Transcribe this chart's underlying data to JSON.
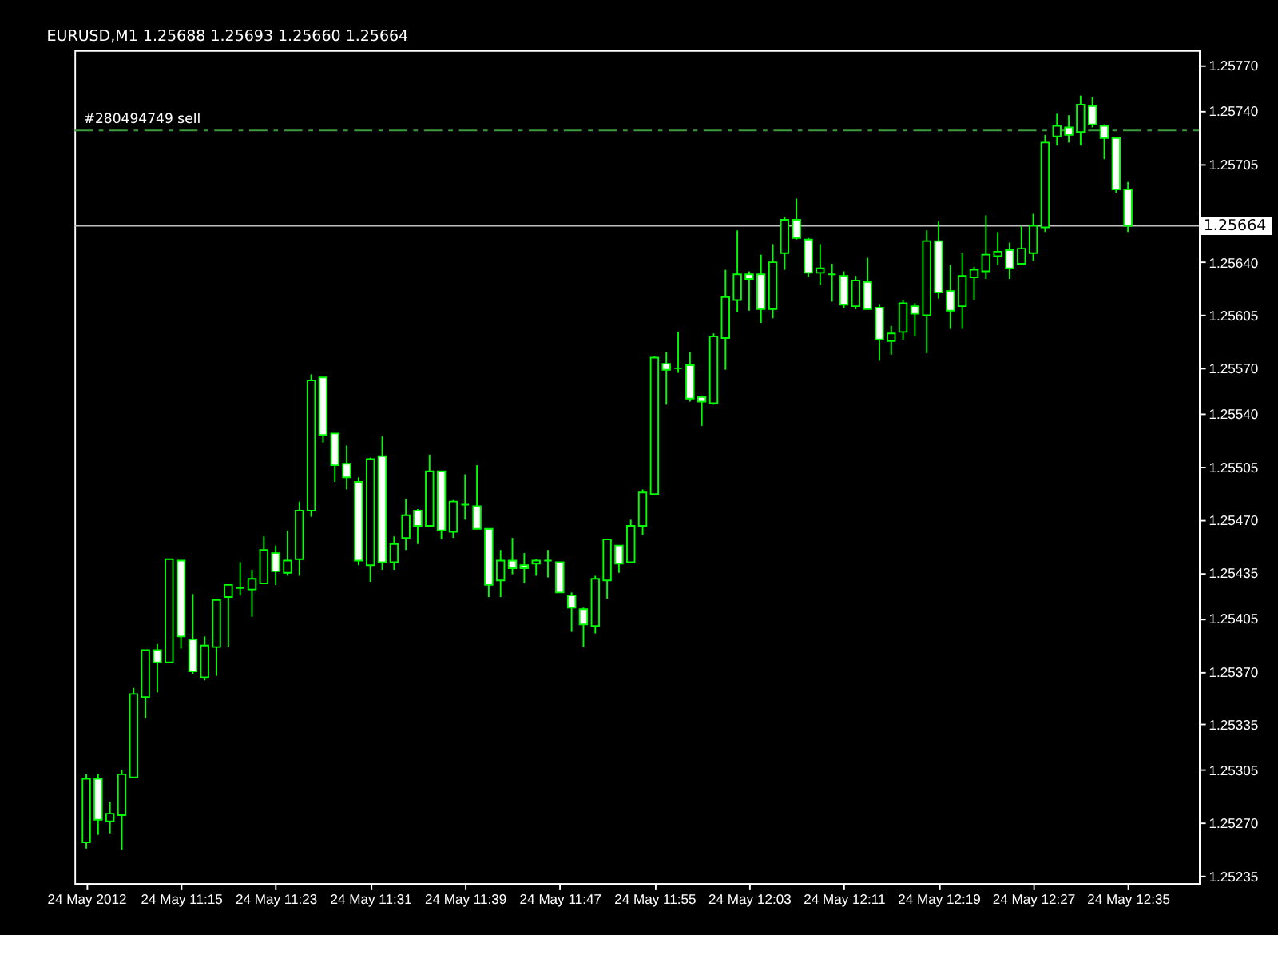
{
  "chart_data": {
    "type": "candlestick",
    "title": "EURUSD,M1  1.25688 1.25693 1.25660 1.25664",
    "color": "#00ff00",
    "x": [
      "2012-05-24T11:07",
      "2012-05-24T11:08",
      "2012-05-24T11:09",
      "2012-05-24T11:10",
      "2012-05-24T11:11",
      "2012-05-24T11:12",
      "2012-05-24T11:13",
      "2012-05-24T11:14",
      "2012-05-24T11:15",
      "2012-05-24T11:16",
      "2012-05-24T11:17",
      "2012-05-24T11:18",
      "2012-05-24T11:19",
      "2012-05-24T11:20",
      "2012-05-24T11:21",
      "2012-05-24T11:22",
      "2012-05-24T11:23",
      "2012-05-24T11:24",
      "2012-05-24T11:25",
      "2012-05-24T11:26",
      "2012-05-24T11:27",
      "2012-05-24T11:28",
      "2012-05-24T11:29",
      "2012-05-24T11:30",
      "2012-05-24T11:31",
      "2012-05-24T11:32",
      "2012-05-24T11:33",
      "2012-05-24T11:34",
      "2012-05-24T11:35",
      "2012-05-24T11:36",
      "2012-05-24T11:37",
      "2012-05-24T11:38",
      "2012-05-24T11:39",
      "2012-05-24T11:40",
      "2012-05-24T11:41",
      "2012-05-24T11:42",
      "2012-05-24T11:43",
      "2012-05-24T11:44",
      "2012-05-24T11:45",
      "2012-05-24T11:46",
      "2012-05-24T11:47",
      "2012-05-24T11:48",
      "2012-05-24T11:49",
      "2012-05-24T11:50",
      "2012-05-24T11:51",
      "2012-05-24T11:52",
      "2012-05-24T11:53",
      "2012-05-24T11:54",
      "2012-05-24T11:55",
      "2012-05-24T11:56",
      "2012-05-24T11:57",
      "2012-05-24T11:58",
      "2012-05-24T11:59",
      "2012-05-24T12:00",
      "2012-05-24T12:01",
      "2012-05-24T12:02",
      "2012-05-24T12:03",
      "2012-05-24T12:04",
      "2012-05-24T12:05",
      "2012-05-24T12:06",
      "2012-05-24T12:07",
      "2012-05-24T12:08",
      "2012-05-24T12:09",
      "2012-05-24T12:10",
      "2012-05-24T12:11",
      "2012-05-24T12:12",
      "2012-05-24T12:13",
      "2012-05-24T12:14",
      "2012-05-24T12:15",
      "2012-05-24T12:16",
      "2012-05-24T12:17",
      "2012-05-24T12:18",
      "2012-05-24T12:19",
      "2012-05-24T12:20",
      "2012-05-24T12:21",
      "2012-05-24T12:22",
      "2012-05-24T12:23",
      "2012-05-24T12:24",
      "2012-05-24T12:25",
      "2012-05-24T12:26",
      "2012-05-24T12:27",
      "2012-05-24T12:28",
      "2012-05-24T12:29",
      "2012-05-24T12:30",
      "2012-05-24T12:31",
      "2012-05-24T12:32",
      "2012-05-24T12:33",
      "2012-05-24T12:34",
      "2012-05-24T12:35"
    ],
    "ohlc": [
      [
        1.25257,
        1.25302,
        1.25253,
        1.25299
      ],
      [
        1.25299,
        1.25302,
        1.25262,
        1.25272
      ],
      [
        1.25271,
        1.25284,
        1.25263,
        1.25276
      ],
      [
        1.25275,
        1.25305,
        1.25252,
        1.25302
      ],
      [
        1.253,
        1.25359,
        1.253,
        1.25355
      ],
      [
        1.25353,
        1.25384,
        1.25339,
        1.25384
      ],
      [
        1.25384,
        1.25388,
        1.25356,
        1.25376
      ],
      [
        1.25376,
        1.25444,
        1.25376,
        1.25444
      ],
      [
        1.25443,
        1.25443,
        1.25385,
        1.25393
      ],
      [
        1.25391,
        1.25421,
        1.25368,
        1.2537
      ],
      [
        1.25366,
        1.25393,
        1.25364,
        1.25387
      ],
      [
        1.25386,
        1.25417,
        1.25367,
        1.25417
      ],
      [
        1.25419,
        1.25427,
        1.25386,
        1.25427
      ],
      [
        1.25425,
        1.25442,
        1.2542,
        1.25425
      ],
      [
        1.25424,
        1.25437,
        1.25406,
        1.25431
      ],
      [
        1.25428,
        1.25459,
        1.25428,
        1.2545
      ],
      [
        1.25448,
        1.25453,
        1.25427,
        1.25436
      ],
      [
        1.25435,
        1.25463,
        1.25433,
        1.25443
      ],
      [
        1.25444,
        1.25482,
        1.25433,
        1.25476
      ],
      [
        1.25476,
        1.25566,
        1.25472,
        1.25562
      ],
      [
        1.25564,
        1.25564,
        1.25521,
        1.25526
      ],
      [
        1.25527,
        1.25527,
        1.25495,
        1.25506
      ],
      [
        1.25507,
        1.25519,
        1.2549,
        1.25498
      ],
      [
        1.25495,
        1.25498,
        1.2544,
        1.25443
      ],
      [
        1.2544,
        1.25511,
        1.25429,
        1.2551
      ],
      [
        1.25512,
        1.25525,
        1.25437,
        1.25442
      ],
      [
        1.25442,
        1.25459,
        1.25437,
        1.25454
      ],
      [
        1.25458,
        1.25484,
        1.2545,
        1.25473
      ],
      [
        1.25476,
        1.25477,
        1.25454,
        1.25466
      ],
      [
        1.25466,
        1.25513,
        1.25466,
        1.25502
      ],
      [
        1.25502,
        1.25502,
        1.25457,
        1.25463
      ],
      [
        1.25462,
        1.25483,
        1.25458,
        1.25482
      ],
      [
        1.2548,
        1.255,
        1.2547,
        1.2548
      ],
      [
        1.25479,
        1.25506,
        1.25464,
        1.25464
      ],
      [
        1.25464,
        1.25464,
        1.25419,
        1.25427
      ],
      [
        1.2543,
        1.2545,
        1.25419,
        1.25443
      ],
      [
        1.25443,
        1.25458,
        1.25434,
        1.25438
      ],
      [
        1.2544,
        1.25448,
        1.25428,
        1.25438
      ],
      [
        1.25441,
        1.25444,
        1.25433,
        1.25443
      ],
      [
        1.25443,
        1.2545,
        1.25432,
        1.25443
      ],
      [
        1.25442,
        1.25442,
        1.25422,
        1.25422
      ],
      [
        1.2542,
        1.25422,
        1.25396,
        1.25412
      ],
      [
        1.25411,
        1.25412,
        1.25386,
        1.25401
      ],
      [
        1.254,
        1.25433,
        1.25395,
        1.25431
      ],
      [
        1.2543,
        1.25457,
        1.25418,
        1.25457
      ],
      [
        1.25453,
        1.25453,
        1.25435,
        1.25441
      ],
      [
        1.25442,
        1.2547,
        1.25442,
        1.25466
      ],
      [
        1.25466,
        1.2549,
        1.2546,
        1.25488
      ],
      [
        1.25487,
        1.25578,
        1.25487,
        1.25577
      ],
      [
        1.25573,
        1.25581,
        1.25546,
        1.25569
      ],
      [
        1.2557,
        1.25594,
        1.25567,
        1.2557
      ],
      [
        1.25572,
        1.25581,
        1.25548,
        1.2555
      ],
      [
        1.25551,
        1.25552,
        1.25532,
        1.25548
      ],
      [
        1.25547,
        1.25593,
        1.25546,
        1.25591
      ],
      [
        1.2559,
        1.25635,
        1.25569,
        1.25617
      ],
      [
        1.25615,
        1.25661,
        1.25607,
        1.25632
      ],
      [
        1.25632,
        1.25634,
        1.25608,
        1.25629
      ],
      [
        1.25632,
        1.25645,
        1.256,
        1.25609
      ],
      [
        1.25609,
        1.25652,
        1.25603,
        1.2564
      ],
      [
        1.25646,
        1.2567,
        1.25635,
        1.25668
      ],
      [
        1.25668,
        1.25682,
        1.25655,
        1.25656
      ],
      [
        1.25655,
        1.25656,
        1.2563,
        1.25633
      ],
      [
        1.25633,
        1.25652,
        1.25625,
        1.25636
      ],
      [
        1.25632,
        1.25639,
        1.25614,
        1.25632
      ],
      [
        1.25631,
        1.25634,
        1.2561,
        1.25612
      ],
      [
        1.25611,
        1.25631,
        1.25609,
        1.25628
      ],
      [
        1.25627,
        1.25643,
        1.25609,
        1.25609
      ],
      [
        1.2561,
        1.25612,
        1.25575,
        1.25589
      ],
      [
        1.25588,
        1.25598,
        1.25579,
        1.25593
      ],
      [
        1.25594,
        1.25615,
        1.25589,
        1.25613
      ],
      [
        1.25611,
        1.25613,
        1.25591,
        1.25606
      ],
      [
        1.25605,
        1.25661,
        1.2558,
        1.25654
      ],
      [
        1.25654,
        1.25667,
        1.25616,
        1.2562
      ],
      [
        1.25621,
        1.25638,
        1.25596,
        1.25608
      ],
      [
        1.25611,
        1.25646,
        1.25596,
        1.25631
      ],
      [
        1.2563,
        1.25637,
        1.25615,
        1.25635
      ],
      [
        1.25634,
        1.25671,
        1.25629,
        1.25645
      ],
      [
        1.25644,
        1.2566,
        1.25638,
        1.25647
      ],
      [
        1.25648,
        1.25653,
        1.25629,
        1.25636
      ],
      [
        1.25639,
        1.25664,
        1.25639,
        1.25649
      ],
      [
        1.25646,
        1.25672,
        1.25641,
        1.25664
      ],
      [
        1.25663,
        1.25724,
        1.2566,
        1.25719
      ],
      [
        1.25723,
        1.25738,
        1.25717,
        1.2573
      ],
      [
        1.25729,
        1.25737,
        1.25719,
        1.25724
      ],
      [
        1.25726,
        1.2575,
        1.25717,
        1.25744
      ],
      [
        1.25743,
        1.25749,
        1.25729,
        1.25731
      ],
      [
        1.2573,
        1.25731,
        1.25708,
        1.25722
      ],
      [
        1.25722,
        1.25722,
        1.25686,
        1.25688
      ],
      [
        1.25688,
        1.25693,
        1.2566,
        1.25664
      ]
    ],
    "xlim": [
      "2012-05-24T11:06",
      "2012-05-24T12:41"
    ],
    "xticks": [
      {
        "value": "2012-05-24T11:07",
        "label": "24 May 2012"
      },
      {
        "value": "2012-05-24T11:15",
        "label": "24 May 11:15"
      },
      {
        "value": "2012-05-24T11:23",
        "label": "24 May 11:23"
      },
      {
        "value": "2012-05-24T11:31",
        "label": "24 May 11:31"
      },
      {
        "value": "2012-05-24T11:39",
        "label": "24 May 11:39"
      },
      {
        "value": "2012-05-24T11:47",
        "label": "24 May 11:47"
      },
      {
        "value": "2012-05-24T11:55",
        "label": "24 May 11:55"
      },
      {
        "value": "2012-05-24T12:03",
        "label": "24 May 12:03"
      },
      {
        "value": "2012-05-24T12:11",
        "label": "24 May 12:11"
      },
      {
        "value": "2012-05-24T12:19",
        "label": "24 May 12:19"
      },
      {
        "value": "2012-05-24T12:27",
        "label": "24 May 12:27"
      },
      {
        "value": "2012-05-24T12:35",
        "label": "24 May 12:35"
      }
    ],
    "ylim": [
      1.2523,
      1.2578
    ],
    "yticks": [
      1.25235,
      {
        "value": 1.2527,
        "label": "1.25270"
      },
      1.25305,
      1.25335,
      {
        "value": 1.2537,
        "label": "1.25370"
      },
      1.25405,
      1.25435,
      {
        "value": 1.2547,
        "label": "1.25470"
      },
      1.25505,
      {
        "value": 1.2554,
        "label": "1.25540"
      },
      {
        "value": 1.2557,
        "label": "1.25570"
      },
      1.25605,
      {
        "value": 1.2564,
        "label": "1.25640"
      },
      1.25705,
      {
        "value": 1.2574,
        "label": "1.25740"
      },
      {
        "value": 1.2577,
        "label": "1.25770"
      }
    ],
    "ref_lines": [
      {
        "axis": "y",
        "value": 1.25727,
        "label": "#280494749 sell",
        "color": "#3c9c3c",
        "line_style": "dashed"
      },
      {
        "axis": "y",
        "value": 1.25664,
        "label": "1.25664",
        "color": "#c0c0c0"
      }
    ]
  }
}
